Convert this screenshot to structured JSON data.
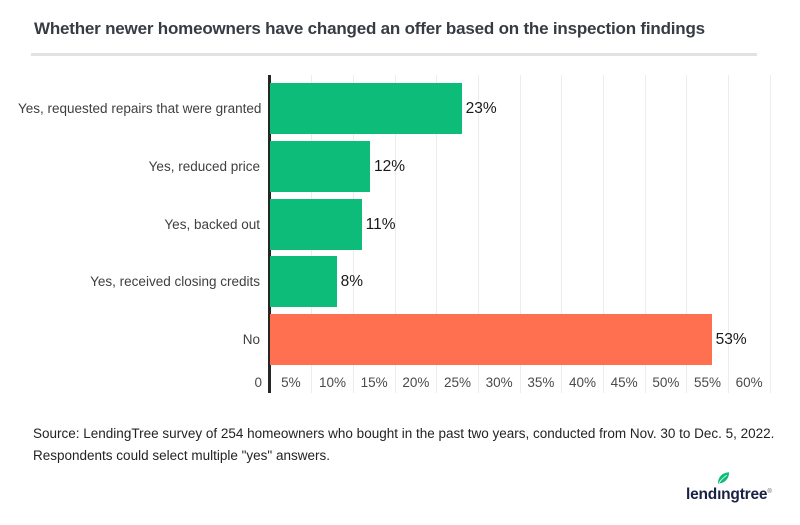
{
  "header": {
    "title": "Whether newer homeowners have changed an offer based on the inspection findings"
  },
  "chart_data": {
    "type": "bar",
    "orientation": "horizontal",
    "title": "Whether newer homeowners have changed an offer based on the inspection findings",
    "xlabel": "",
    "ylabel": "",
    "xlim": [
      0,
      60
    ],
    "grid": "vertical",
    "legend": "none",
    "categories": [
      "Yes, requested repairs that were granted",
      "Yes, reduced price",
      "Yes, backed out",
      "Yes, received closing credits",
      "No"
    ],
    "values": [
      23,
      12,
      11,
      8,
      53
    ],
    "value_labels": [
      "23%",
      "12%",
      "11%",
      "8%",
      "53%"
    ],
    "bar_colors": [
      "#0DBC79",
      "#0DBC79",
      "#0DBC79",
      "#0DBC79",
      "#FF7051"
    ],
    "axis_color": "#262626",
    "gridline_color": "#ECECEC",
    "ticks": [
      {
        "value": 0,
        "label": "0"
      },
      {
        "value": 5,
        "label": "5%"
      },
      {
        "value": 10,
        "label": "10%"
      },
      {
        "value": 15,
        "label": "15%"
      },
      {
        "value": 20,
        "label": "20%"
      },
      {
        "value": 25,
        "label": "25%"
      },
      {
        "value": 30,
        "label": "30%"
      },
      {
        "value": 35,
        "label": "35%"
      },
      {
        "value": 40,
        "label": "40%"
      },
      {
        "value": 45,
        "label": "45%"
      },
      {
        "value": 50,
        "label": "50%"
      },
      {
        "value": 55,
        "label": "55%"
      },
      {
        "value": 60,
        "label": "60%"
      }
    ]
  },
  "footer": {
    "source_lines": [
      "Source: LendingTree survey of 254 homeowners who bought in the past two years, conducted from Nov. 30 to Dec. 5, 2022.",
      "Respondents could select multiple \"yes\" answers."
    ],
    "logo": {
      "text": "lendingtree",
      "trademark": "®",
      "leaf_color": "#0DBC79",
      "text_color": "#1B2144"
    }
  }
}
